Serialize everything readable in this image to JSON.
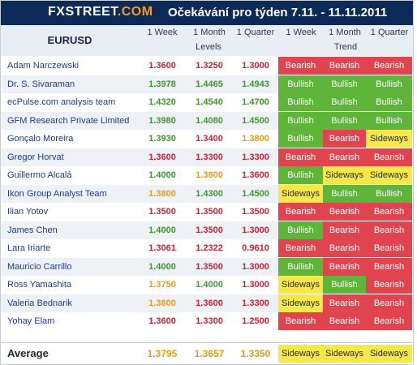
{
  "header": {
    "logo": {
      "fx": "FX",
      "s": "STREET",
      "dot": ".COM"
    },
    "title": "Očekávání pro týden 7.11. - 11.11.2011",
    "pair": "EURUSD",
    "levels_cols": [
      "1 Week",
      "1 Month",
      "1 Quarter"
    ],
    "levels_label": "Levels",
    "trend_cols": [
      "1 Week",
      "1 Month",
      "1 Quarter"
    ],
    "trend_label": "Trend"
  },
  "colors": {
    "bearish": "#e0454f",
    "bullish": "#5fb53a",
    "sideways": "#f7e84a",
    "down": "#cc2233",
    "up": "#3c9a2c",
    "flat": "#e79b16",
    "header_bg": "#0b2a57",
    "logo_accent": "#f39a1f"
  },
  "rows": [
    {
      "name": "Adam Narczewski",
      "w": "1.3600",
      "m": "1.3250",
      "q": "1.3000",
      "tw": "Bearish",
      "tm": "Bearish",
      "tq": "Bearish"
    },
    {
      "name": "Dr. S. Sivaraman",
      "w": "1.3978",
      "m": "1.4465",
      "q": "1.4943",
      "tw": "Bullish",
      "tm": "Bullish",
      "tq": "Bullish"
    },
    {
      "name": "ecPulse.com analysis team",
      "w": "1.4320",
      "m": "1.4540",
      "q": "1.4700",
      "tw": "Bullish",
      "tm": "Bullish",
      "tq": "Bullish"
    },
    {
      "name": "GFM Research Private Limited",
      "w": "1.3980",
      "m": "1.4080",
      "q": "1.4500",
      "tw": "Bullish",
      "tm": "Bullish",
      "tq": "Bullish"
    },
    {
      "name": "Gonçalo Moreira",
      "w": "1.3930",
      "m": "1.3400",
      "q": "1.3800",
      "tw": "Bullish",
      "tm": "Bearish",
      "tq": "Sideways"
    },
    {
      "name": "Gregor Horvat",
      "w": "1.3600",
      "m": "1.3300",
      "q": "1.3300",
      "tw": "Bearish",
      "tm": "Bearish",
      "tq": "Bearish"
    },
    {
      "name": "Guillermo Alcalá",
      "w": "1.4000",
      "m": "1.3800",
      "q": "1.3600",
      "tw": "Bullish",
      "tm": "Sideways",
      "tq": "Sideways"
    },
    {
      "name": "Ikon Group Analyst Team",
      "w": "1.3800",
      "m": "1.4300",
      "q": "1.4500",
      "tw": "Sideways",
      "tm": "Bullish",
      "tq": "Bullish"
    },
    {
      "name": "Ilian Yotov",
      "w": "1.3500",
      "m": "1.3500",
      "q": "1.3500",
      "tw": "Bearish",
      "tm": "Bearish",
      "tq": "Bearish"
    },
    {
      "name": "James Chen",
      "w": "1.4000",
      "m": "1.3500",
      "q": "1.3000",
      "tw": "Bullish",
      "tm": "Bearish",
      "tq": "Bearish"
    },
    {
      "name": "Lara Iriarte",
      "w": "1.3061",
      "m": "1.2322",
      "q": "0.9610",
      "tw": "Bearish",
      "tm": "Bearish",
      "tq": "Bearish"
    },
    {
      "name": "Mauricio Carrillo",
      "w": "1.4000",
      "m": "1.3500",
      "q": "1.3000",
      "tw": "Bullish",
      "tm": "Bearish",
      "tq": "Bearish"
    },
    {
      "name": "Ross Yamashita",
      "w": "1.3750",
      "m": "1.4000",
      "q": "1.3000",
      "tw": "Sideways",
      "tm": "Bullish",
      "tq": "Bearish"
    },
    {
      "name": "Valeria Bednarik",
      "w": "1.3800",
      "m": "1.3600",
      "q": "1.3300",
      "tw": "Sideways",
      "tm": "Bearish",
      "tq": "Bearish"
    },
    {
      "name": "Yohay Elam",
      "w": "1.3600",
      "m": "1.3300",
      "q": "1.2500",
      "tw": "Bearish",
      "tm": "Bearish",
      "tq": "Bearish"
    }
  ],
  "average": {
    "label": "Average",
    "w": "1.3795",
    "m": "1.3657",
    "q": "1.3350",
    "tw": "Sideways",
    "tm": "Sideways",
    "tq": "Sideways"
  }
}
